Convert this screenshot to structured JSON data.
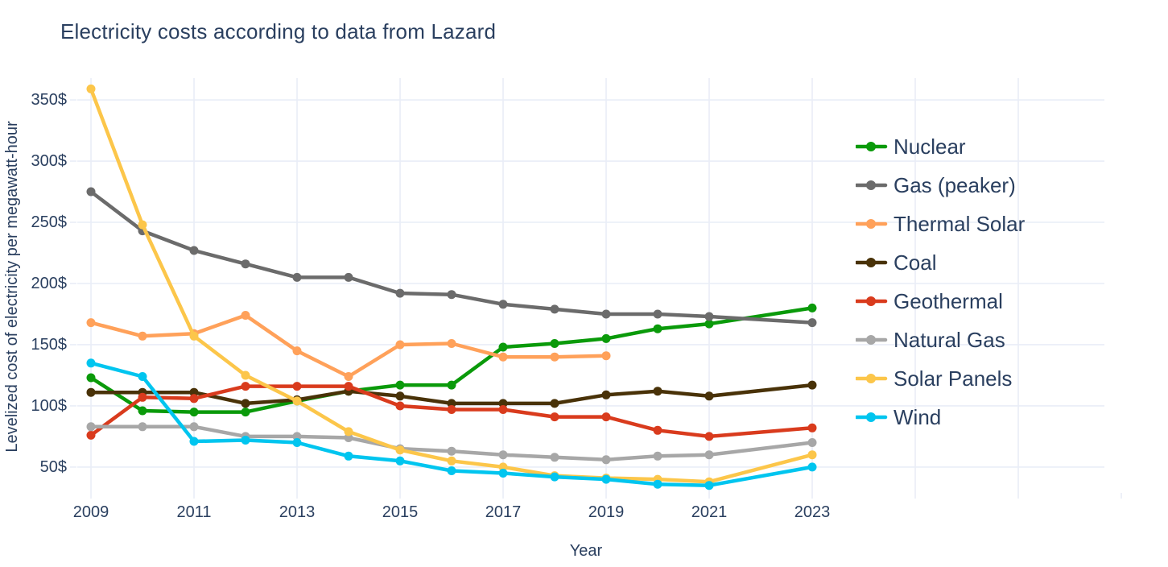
{
  "title": "Electricity costs according to data from Lazard",
  "style": {
    "text_color": "#2a3f5f",
    "grid_color": "#e9edf7",
    "background_color": "#ffffff"
  },
  "chart_data": {
    "type": "line",
    "title": "Electricity costs according to data from Lazard",
    "xlabel": "Year",
    "ylabel": "Levelized cost of electricity per megawatt-hour",
    "x": [
      2009,
      2010,
      2011,
      2012,
      2013,
      2014,
      2015,
      2016,
      2017,
      2018,
      2019,
      2020,
      2021,
      2023
    ],
    "series": [
      {
        "name": "Nuclear",
        "id": "nuclear",
        "color": "#0a9a0a",
        "values": [
          123,
          96,
          95,
          95,
          104,
          112,
          117,
          117,
          148,
          151,
          155,
          163,
          167,
          180
        ]
      },
      {
        "name": "Gas (peaker)",
        "id": "gas-peaker",
        "color": "#6b6b6b",
        "values": [
          275,
          243,
          227,
          216,
          205,
          205,
          192,
          191,
          183,
          179,
          175,
          175,
          173,
          168
        ]
      },
      {
        "name": "Thermal Solar",
        "id": "thermal-solar",
        "color": "#ffa15a",
        "values": [
          168,
          157,
          159,
          174,
          145,
          124,
          150,
          151,
          140,
          140,
          141,
          null,
          null,
          null
        ]
      },
      {
        "name": "Coal",
        "id": "coal",
        "color": "#493208",
        "values": [
          111,
          111,
          111,
          102,
          105,
          112,
          108,
          102,
          102,
          102,
          109,
          112,
          108,
          117
        ]
      },
      {
        "name": "Geothermal",
        "id": "geothermal",
        "color": "#d93b1d",
        "values": [
          76,
          107,
          106,
          116,
          116,
          116,
          100,
          97,
          97,
          91,
          91,
          80,
          75,
          82
        ]
      },
      {
        "name": "Natural Gas",
        "id": "natural-gas",
        "color": "#a7a7a7",
        "values": [
          83,
          83,
          83,
          75,
          75,
          74,
          65,
          63,
          60,
          58,
          56,
          59,
          60,
          70
        ]
      },
      {
        "name": "Solar Panels",
        "id": "solar-panels",
        "color": "#fcc64a",
        "values": [
          359,
          248,
          157,
          125,
          104,
          79,
          64,
          55,
          50,
          43,
          41,
          40,
          38,
          60
        ]
      },
      {
        "name": "Wind",
        "id": "wind",
        "color": "#00c5ef",
        "values": [
          135,
          124,
          71,
          72,
          70,
          59,
          55,
          47,
          45,
          42,
          40,
          36,
          35,
          50
        ]
      }
    ],
    "x_ticks_labeled": [
      2009,
      2011,
      2013,
      2015,
      2017,
      2019,
      2021,
      2023
    ],
    "x_grid_unlabeled": [
      2025,
      2027
    ],
    "x_tickmark_extra": [
      2029
    ],
    "y_ticks": [
      350,
      300,
      250,
      200,
      150,
      100,
      50
    ],
    "y_tick_suffix": "$",
    "xlim": [
      2008.734,
      2028.672
    ],
    "ylim": [
      28.9,
      367.8
    ],
    "grid": true,
    "legend_position": "right"
  }
}
